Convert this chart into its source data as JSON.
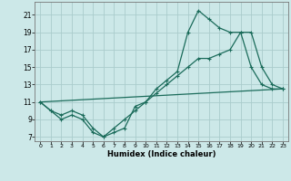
{
  "title": "",
  "xlabel": "Humidex (Indice chaleur)",
  "bg_color": "#cce8e8",
  "grid_color": "#aacccc",
  "line_color": "#1a6b5a",
  "xlim": [
    -0.5,
    23.5
  ],
  "ylim": [
    6.5,
    22.5
  ],
  "xticks": [
    0,
    1,
    2,
    3,
    4,
    5,
    6,
    7,
    8,
    9,
    10,
    11,
    12,
    13,
    14,
    15,
    16,
    17,
    18,
    19,
    20,
    21,
    22,
    23
  ],
  "yticks": [
    7,
    9,
    11,
    13,
    15,
    17,
    19,
    21
  ],
  "line1_x": [
    0,
    1,
    2,
    3,
    4,
    5,
    6,
    7,
    8,
    9,
    10,
    11,
    12,
    13,
    14,
    15,
    16,
    17,
    18,
    19,
    20,
    21,
    22,
    23
  ],
  "line1_y": [
    11,
    10,
    9,
    9.5,
    9,
    7.5,
    7,
    7.5,
    8,
    10.5,
    11,
    12,
    13,
    14,
    15,
    16,
    16,
    16.5,
    17,
    19,
    19,
    15,
    13,
    12.5
  ],
  "line2_x": [
    0,
    1,
    2,
    3,
    4,
    5,
    6,
    7,
    8,
    9,
    10,
    11,
    12,
    13,
    14,
    15,
    16,
    17,
    18,
    19,
    20,
    21,
    22,
    23
  ],
  "line2_y": [
    11,
    10,
    9.5,
    10,
    9.5,
    8,
    7,
    8,
    9,
    10,
    11,
    12.5,
    13.5,
    14.5,
    19,
    21.5,
    20.5,
    19.5,
    19,
    19,
    15,
    13,
    12.5,
    12.5
  ],
  "line3_x": [
    0,
    23
  ],
  "line3_y": [
    11,
    12.5
  ]
}
